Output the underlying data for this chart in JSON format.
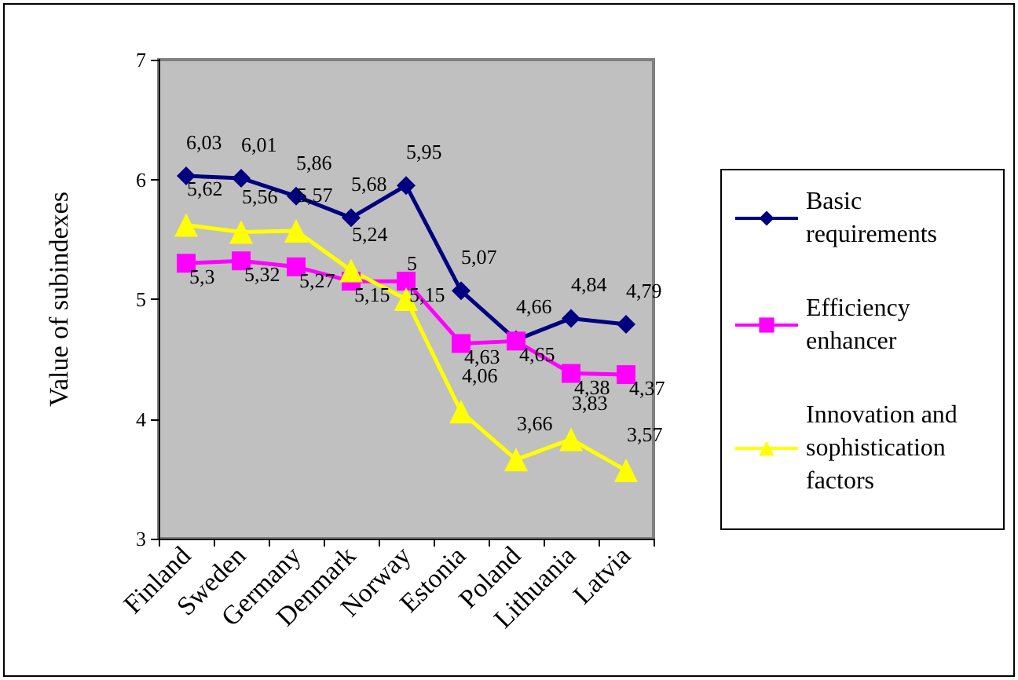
{
  "chart_data": {
    "type": "line",
    "ylabel": "Value of subindexes",
    "categories": [
      "Finland",
      "Sweden",
      "Germany",
      "Denmark",
      "Norway",
      "Estonia",
      "Poland",
      "Lithuania",
      "Latvia"
    ],
    "ylim": [
      3,
      7
    ],
    "yticks": [
      3,
      4,
      5,
      6,
      7
    ],
    "grid": false,
    "legend": "right",
    "series": [
      {
        "name": "Basic requirements",
        "color": "#000080",
        "marker": "diamond",
        "values": [
          6.03,
          6.01,
          5.86,
          5.68,
          5.95,
          5.07,
          4.66,
          4.84,
          4.79
        ],
        "value_labels": [
          "6,03",
          "6,01",
          "5,86",
          "5,68",
          "5,95",
          "5,07",
          "4,66",
          "4,84",
          "4,79"
        ]
      },
      {
        "name": "Efficiency enhancer",
        "color": "#ff00ff",
        "marker": "square",
        "values": [
          5.3,
          5.32,
          5.27,
          5.15,
          5.15,
          4.63,
          4.65,
          4.38,
          4.37
        ],
        "value_labels": [
          "5,3",
          "5,32",
          "5,27",
          "5,15",
          "5,15",
          "4,63",
          "4,65",
          "4,38",
          "4,37"
        ]
      },
      {
        "name": "Innovation and sophistication factors",
        "color": "#ffff00",
        "marker": "triangle",
        "values": [
          5.62,
          5.56,
          5.57,
          5.24,
          5,
          4.06,
          3.66,
          3.83,
          3.57
        ],
        "value_labels": [
          "5,62",
          "5,56",
          "5,57",
          "5,24",
          "5",
          "4,06",
          "3,66",
          "3,83",
          "3,57"
        ]
      }
    ]
  }
}
